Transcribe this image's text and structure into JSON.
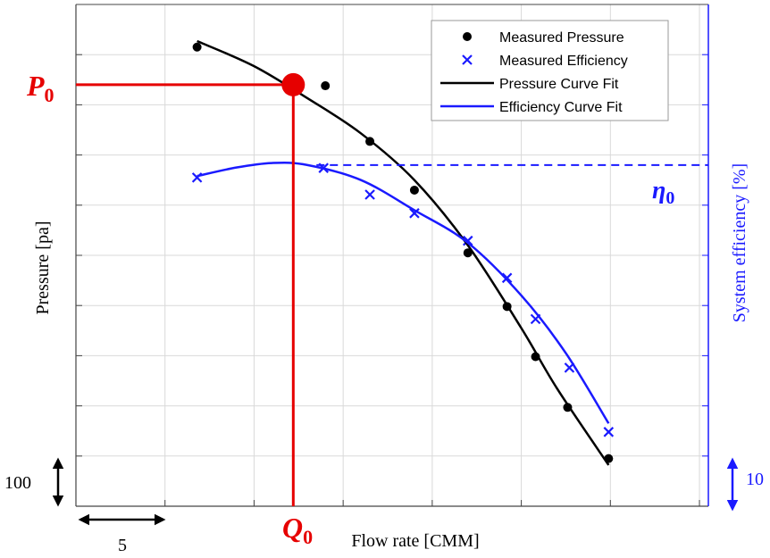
{
  "chart_data": {
    "type": "scatter",
    "title": "",
    "xlabel": "Flow rate [CMM]",
    "ylabel": "Pressure [pa]",
    "y2label": "System efficiency [%]",
    "xlim": [
      0,
      35.5
    ],
    "ylim": [
      0,
      1000
    ],
    "y2lim": [
      0,
      100
    ],
    "grid": true,
    "legend_position": "top-right",
    "scale_bars": {
      "x": {
        "label": "5",
        "span": 5
      },
      "y": {
        "label": "100",
        "span": 100
      },
      "y2": {
        "label": "10",
        "span": 10
      }
    },
    "series": [
      {
        "name": "Measured Pressure",
        "kind": "markers",
        "marker": "dot",
        "color": "#000000",
        "axis": "left",
        "x": [
          6.8,
          14,
          16.5,
          19,
          22,
          24.2,
          25.8,
          27.6,
          29.9
        ],
        "y": [
          915,
          838,
          727,
          630,
          505,
          398,
          298,
          197,
          95
        ]
      },
      {
        "name": "Measured Efficiency",
        "kind": "markers",
        "marker": "x",
        "color": "#1a1aff",
        "axis": "right",
        "x": [
          6.8,
          13.9,
          16.5,
          19,
          22,
          24.2,
          25.8,
          27.7,
          29.9
        ],
        "y": [
          65.5,
          67.4,
          62.1,
          58.4,
          52.9,
          45.5,
          37.3,
          27.6,
          14.8
        ]
      },
      {
        "name": "Pressure Curve Fit",
        "kind": "line",
        "color": "#000000",
        "axis": "left",
        "x": [
          6.8,
          10,
          13,
          16,
          19,
          22,
          25,
          27,
          29.9
        ],
        "y": [
          927,
          877,
          813,
          743,
          650,
          520,
          355,
          235,
          82
        ]
      },
      {
        "name": "Efficiency Curve Fit",
        "kind": "line",
        "color": "#1a1aff",
        "axis": "right",
        "x": [
          6.8,
          9,
          11,
          13,
          16,
          19,
          22,
          25,
          27.5,
          29.9
        ],
        "y": [
          65.8,
          67.5,
          68.4,
          68,
          65,
          59,
          52.5,
          42,
          30.5,
          16.5
        ]
      }
    ],
    "operating_point": {
      "color": "#e60000",
      "x": 12.2,
      "y": 840,
      "x_label": {
        "main": "Q",
        "sub": "0"
      },
      "y_label": {
        "main": "P",
        "sub": "0"
      }
    },
    "efficiency_reference": {
      "color": "#1a1aff",
      "y": 68,
      "from_x": 13.5,
      "label": {
        "main": "η",
        "sub": "0"
      }
    }
  }
}
